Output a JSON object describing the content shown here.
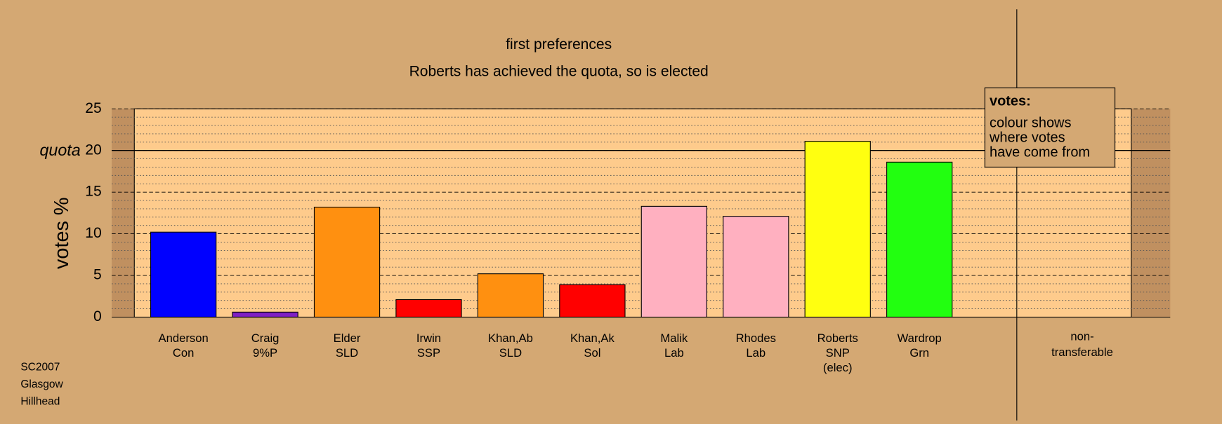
{
  "chart_data": {
    "type": "bar",
    "title": "first preferences",
    "subtitle": "Roberts has achieved the quota, so is elected",
    "y_label": "votes %",
    "categories": [
      [
        "Anderson",
        "Con"
      ],
      [
        "Craig",
        "9%P"
      ],
      [
        "Elder",
        "SLD"
      ],
      [
        "Irwin",
        "SSP"
      ],
      [
        "Khan,Ab",
        "SLD"
      ],
      [
        "Khan,Ak",
        "Sol"
      ],
      [
        "Malik",
        "Lab"
      ],
      [
        "Rhodes",
        "Lab"
      ],
      [
        "Roberts",
        "SNP",
        "(elec)"
      ],
      [
        "Wardrop",
        "Grn"
      ]
    ],
    "values": [
      10.2,
      0.6,
      13.2,
      2.1,
      5.2,
      3.9,
      13.3,
      12.1,
      21.1,
      18.6
    ],
    "colors": [
      "#0000ff",
      "#7f1fc4",
      "#ff9010",
      "#ff0000",
      "#ff9010",
      "#ff0000",
      "#ffb0c0",
      "#ffb0c0",
      "#ffff10",
      "#22ff10"
    ],
    "side_category": [
      "non-",
      "transferable"
    ],
    "ylim": [
      0,
      25
    ],
    "yticks": [
      0,
      5,
      10,
      15,
      20,
      25
    ],
    "minor_gridlines": [
      1,
      2,
      3,
      4,
      6,
      7,
      8,
      9,
      11,
      12,
      13,
      14,
      16,
      17,
      18,
      19,
      21,
      22,
      23,
      24
    ],
    "quota": {
      "value": 20,
      "label": "quota"
    },
    "legend": {
      "title": "votes:",
      "lines": [
        "colour shows",
        "where votes",
        "have come from"
      ]
    },
    "footer": [
      "SC2007",
      "Glasgow",
      "Hillhead"
    ]
  }
}
